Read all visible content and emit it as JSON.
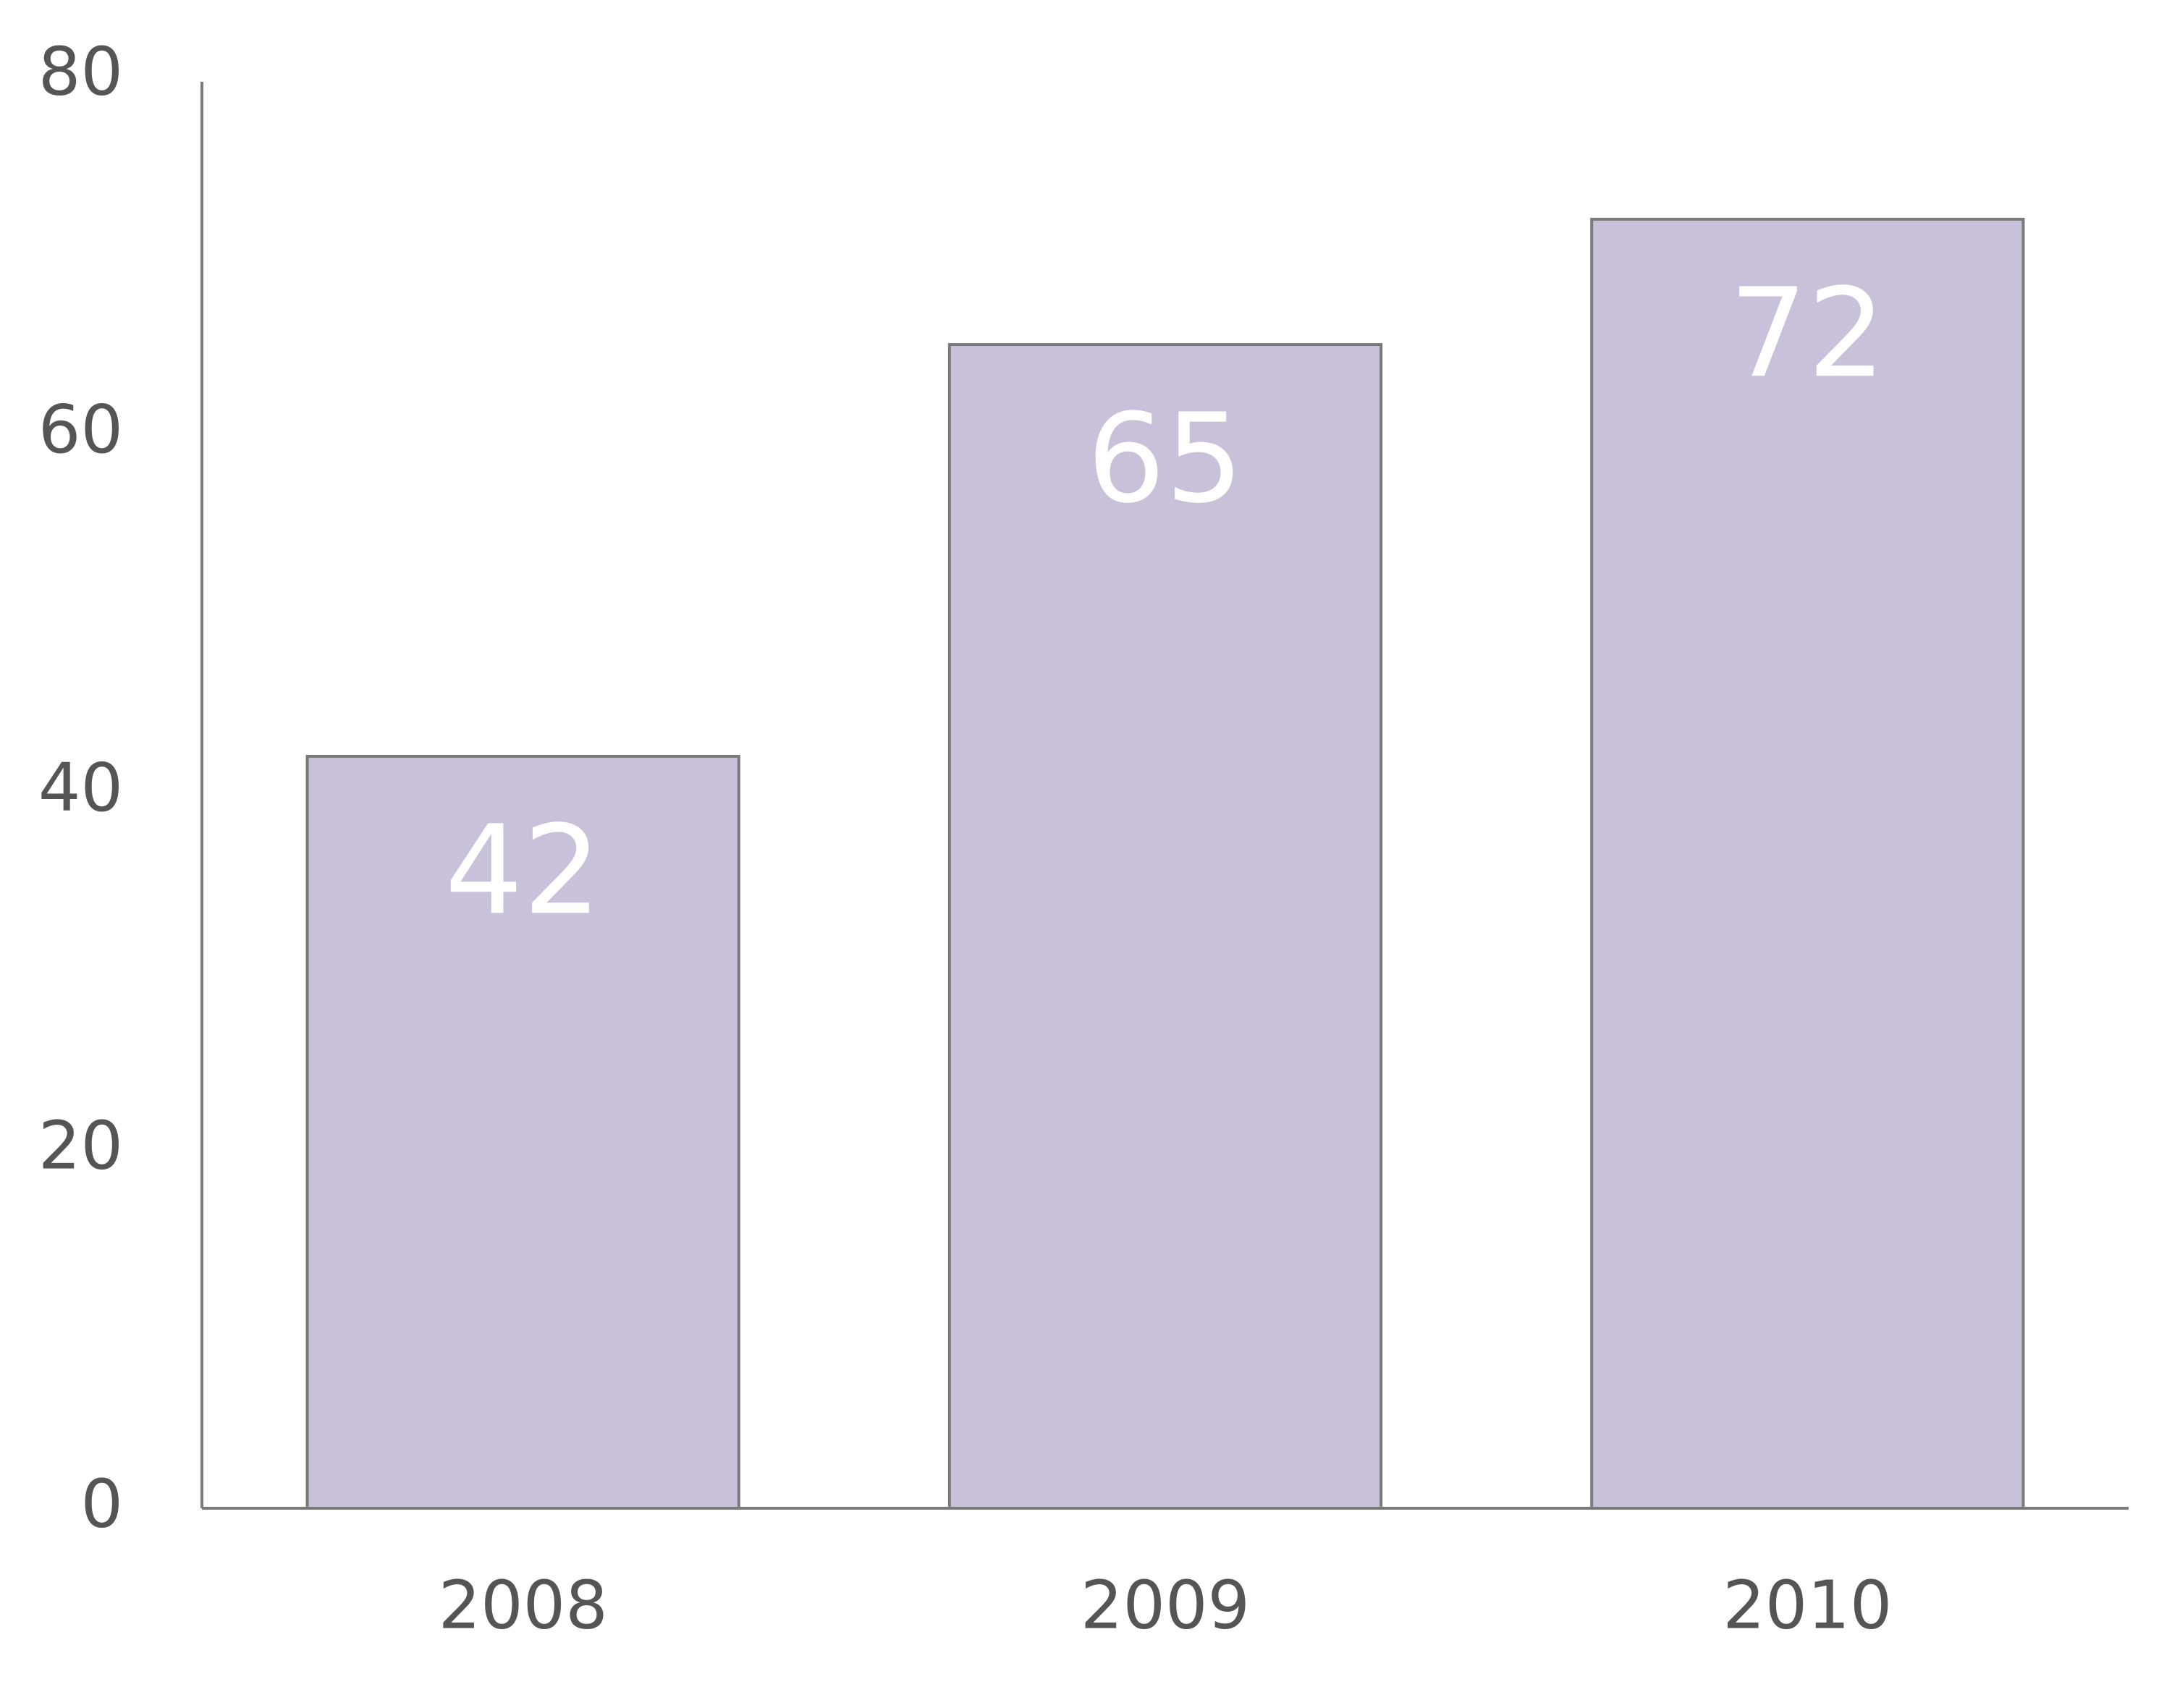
{
  "chart_data": {
    "type": "bar",
    "categories": [
      "2008",
      "2009",
      "2010"
    ],
    "values": [
      42,
      65,
      72
    ],
    "color": "#c9c0d9",
    "ylim": [
      0,
      80
    ],
    "yticks": [
      0,
      20,
      40,
      60,
      80
    ],
    "grid": false
  }
}
